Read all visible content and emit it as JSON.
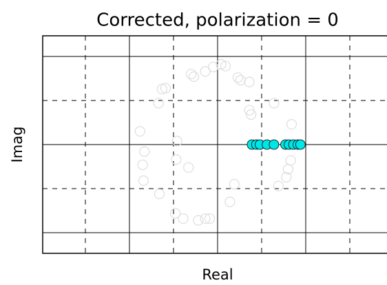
{
  "chart_data": {
    "type": "scatter",
    "title": "Corrected, polarization = 0",
    "xlabel": "Real",
    "ylabel": "Imag",
    "xlim": [
      -1.984,
      1.922
    ],
    "ylim": [
      -1.234,
      1.234
    ],
    "xticks": [
      -1,
      0,
      1
    ],
    "x_minor_ticks": [
      -1.5,
      -0.5,
      0.5,
      1.5
    ],
    "yticks": [
      -1,
      0,
      1
    ],
    "y_minor_ticks": [
      -0.5,
      0.5
    ],
    "grid": true,
    "series": [
      {
        "color": "#dddddd",
        "filled": false,
        "x": [
          -0.3,
          -0.27,
          -0.14,
          -0.05,
          0.04,
          0.09,
          0.23,
          0.26,
          0.36,
          -0.63,
          -0.59,
          -0.67,
          0.36,
          0.38,
          0.64,
          0.84,
          -0.88,
          -0.46,
          -0.83,
          -0.47,
          -0.85,
          -0.33,
          0.83,
          0.8,
          0.78,
          -0.84,
          0.19,
          0.69,
          -0.66,
          0.14,
          -0.48,
          -0.39,
          -0.22,
          -0.14,
          -0.09
        ],
        "values": [
          0.8,
          0.77,
          0.83,
          0.88,
          0.91,
          0.89,
          0.76,
          0.73,
          0.71,
          0.63,
          0.64,
          0.47,
          0.39,
          0.34,
          0.47,
          0.23,
          0.15,
          0.04,
          -0.08,
          -0.17,
          -0.23,
          -0.26,
          -0.18,
          -0.28,
          -0.37,
          -0.41,
          -0.45,
          -0.47,
          -0.56,
          -0.65,
          -0.78,
          -0.84,
          -0.86,
          -0.84,
          -0.84
        ]
      },
      {
        "color": "#00e5e5",
        "filled": true,
        "x": [
          0.39,
          0.44,
          0.48,
          0.56,
          0.64,
          0.77,
          0.81,
          0.86,
          0.91,
          0.94
        ],
        "values": [
          0,
          0,
          0,
          0,
          0,
          0,
          0,
          0,
          0,
          0
        ]
      }
    ]
  }
}
